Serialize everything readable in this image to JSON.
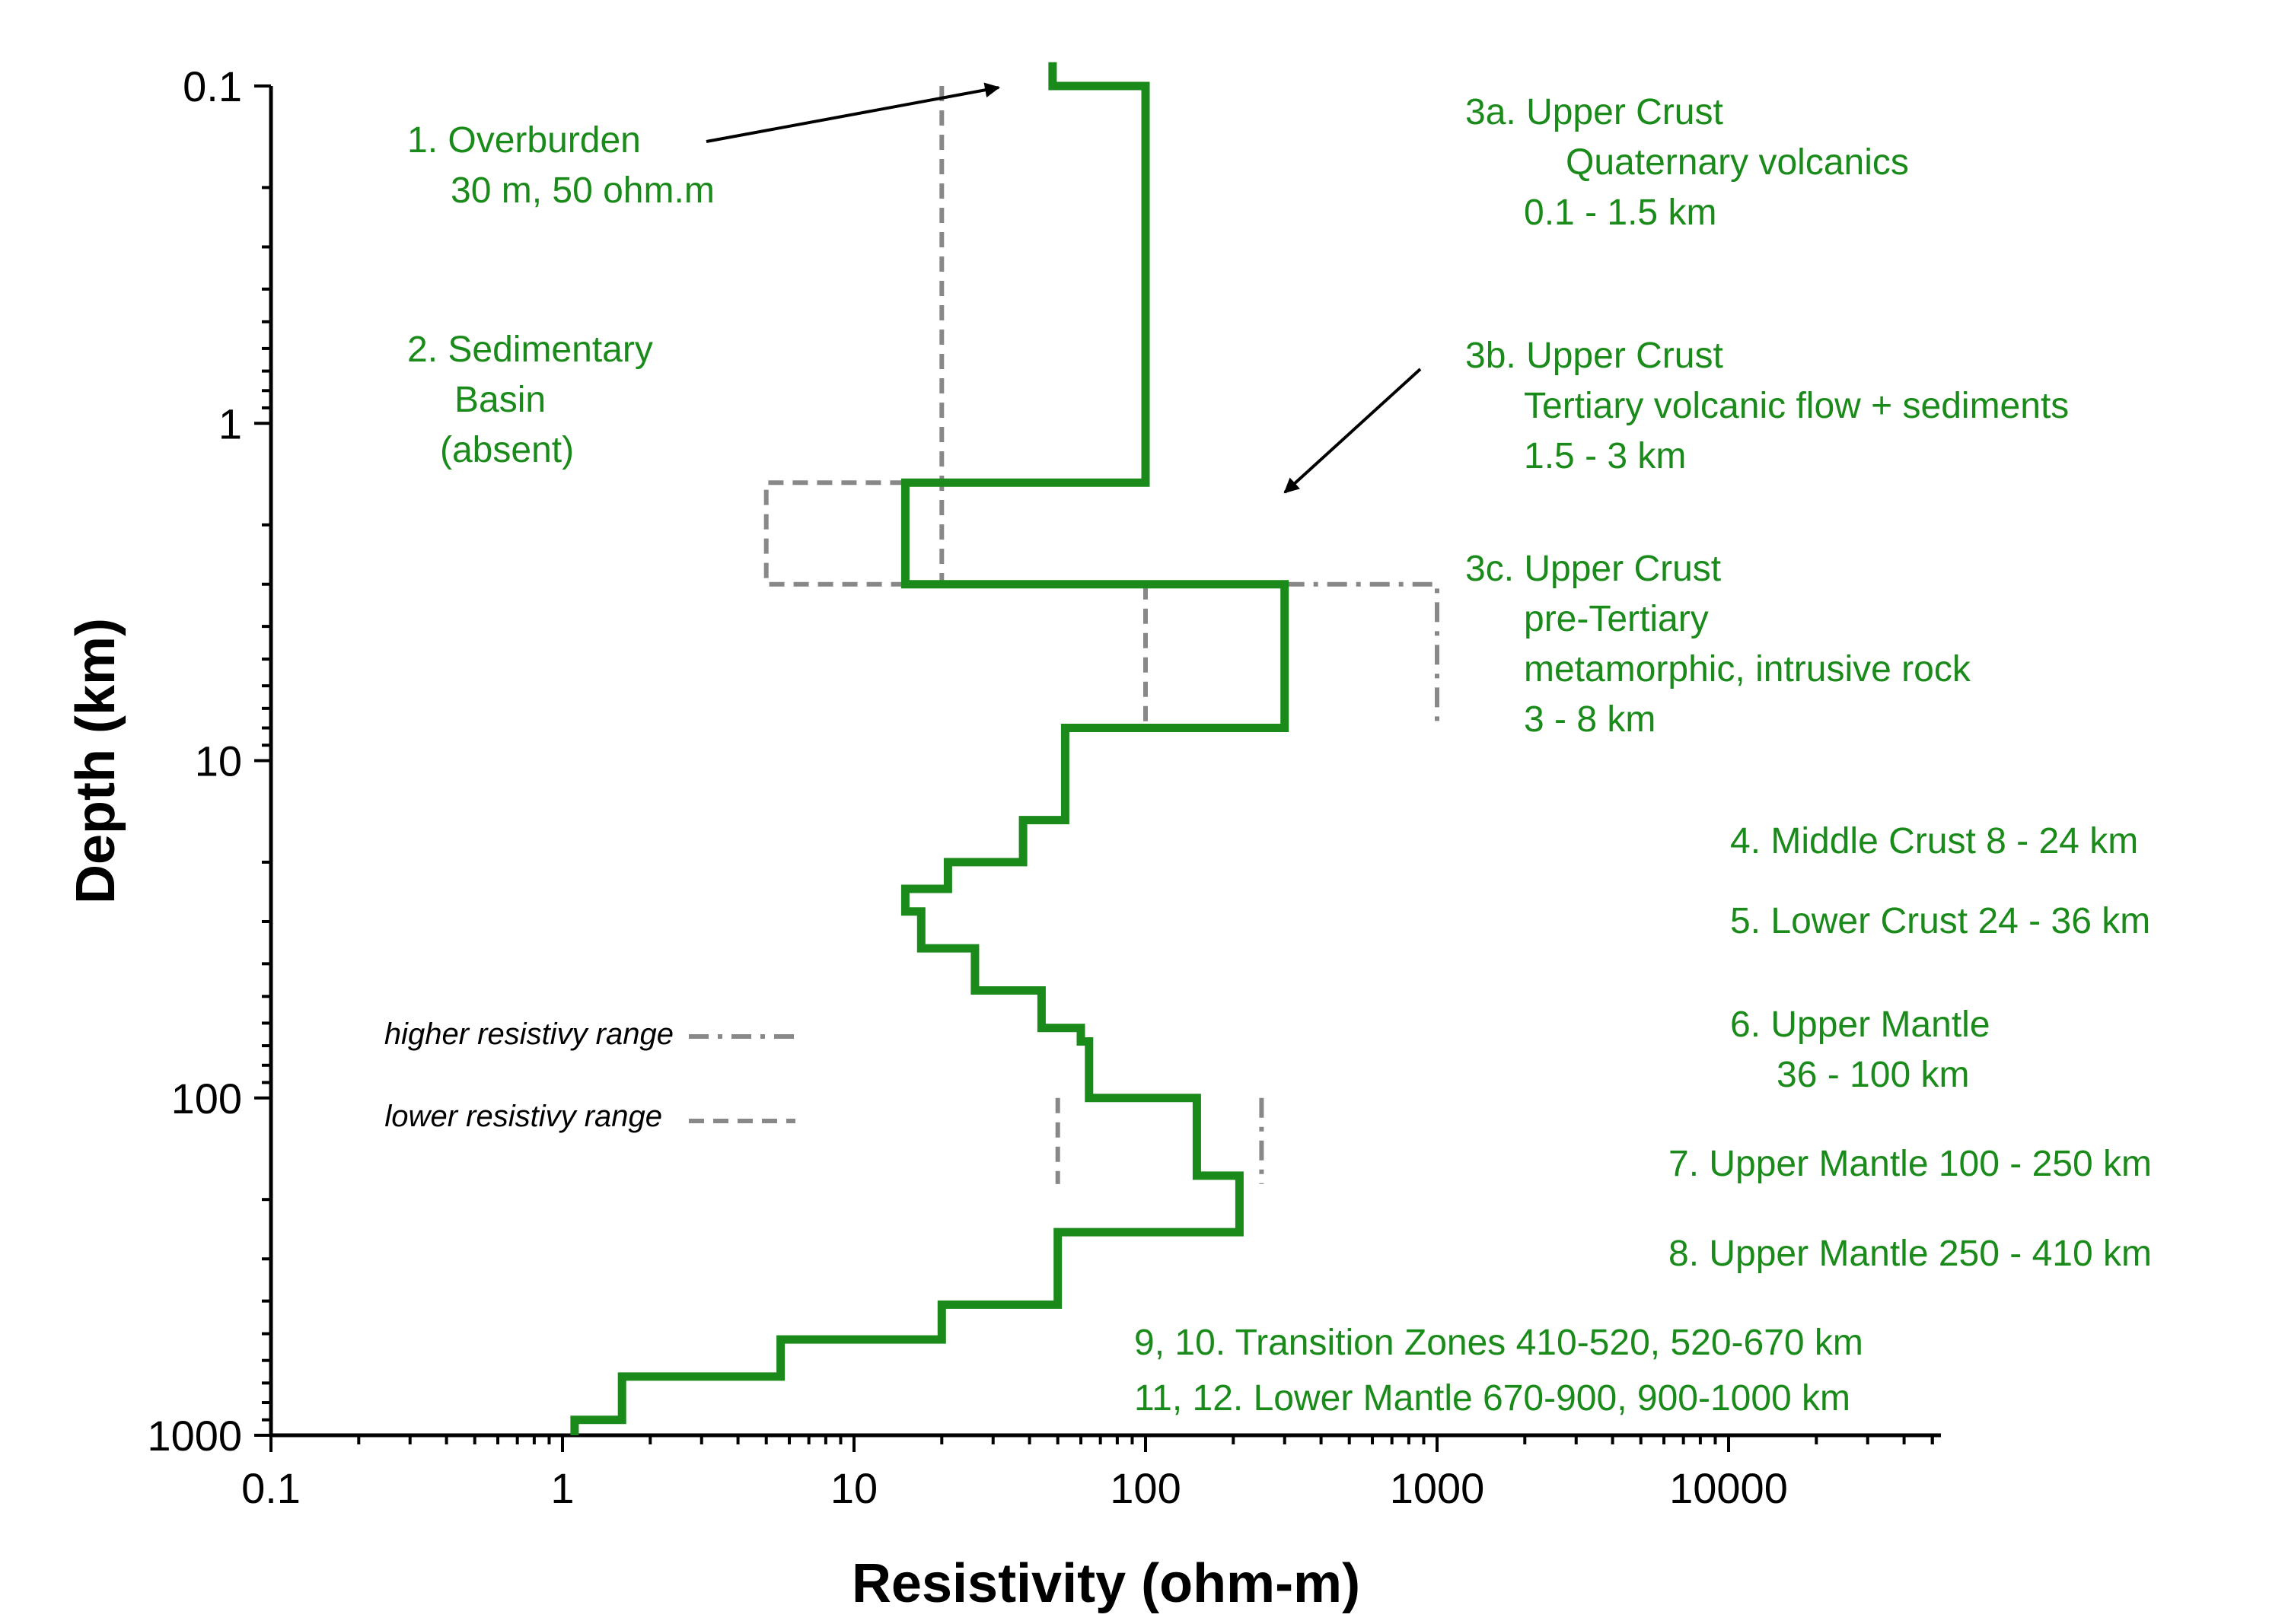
{
  "chart_data": {
    "type": "line",
    "xlabel": "Resistivity (ohm-m)",
    "ylabel": "Depth (km)",
    "x_scale": "log",
    "y_scale": "log",
    "y_inverted": true,
    "xlim": [
      0.1,
      50000
    ],
    "ylim": [
      0.1,
      1000
    ],
    "x_tick_labels": [
      "0.1",
      "1",
      "10",
      "100",
      "1000",
      "10000"
    ],
    "y_tick_labels": [
      "0.1",
      "1",
      "10",
      "100",
      "1000"
    ],
    "grid": false,
    "colors": {
      "profile": "#1a8a1a",
      "ranges": "#888888",
      "annotations": "#1a8a1a",
      "arrows": "#000000"
    },
    "series": [
      {
        "points": [
          [
            48,
            0.085
          ],
          [
            48,
            0.1
          ],
          [
            100,
            0.1
          ],
          [
            100,
            1.5
          ],
          [
            15,
            1.5
          ],
          [
            15,
            3
          ],
          [
            300,
            3
          ],
          [
            300,
            8
          ],
          [
            53,
            8
          ],
          [
            53,
            15
          ],
          [
            38,
            15
          ],
          [
            38,
            20
          ],
          [
            21,
            20
          ],
          [
            21,
            24
          ],
          [
            15,
            24
          ],
          [
            15,
            28
          ],
          [
            17,
            28
          ],
          [
            17,
            36
          ],
          [
            26,
            36
          ],
          [
            26,
            48
          ],
          [
            44,
            48
          ],
          [
            44,
            62
          ],
          [
            60,
            62
          ],
          [
            60,
            68
          ],
          [
            64,
            68
          ],
          [
            64,
            100
          ],
          [
            150,
            100
          ],
          [
            150,
            170
          ],
          [
            210,
            170
          ],
          [
            210,
            250
          ],
          [
            50,
            250
          ],
          [
            50,
            410
          ],
          [
            20,
            410
          ],
          [
            20,
            520
          ],
          [
            5.6,
            520
          ],
          [
            5.6,
            670
          ],
          [
            1.6,
            670
          ],
          [
            1.6,
            900
          ],
          [
            1.1,
            900
          ],
          [
            1.1,
            1000
          ]
        ]
      }
    ],
    "ranges": [
      {
        "kind": "lower",
        "points": [
          [
            20,
            0.1
          ],
          [
            20,
            3
          ]
        ]
      },
      {
        "kind": "lower",
        "points": [
          [
            15,
            1.5
          ],
          [
            5,
            1.5
          ],
          [
            5,
            3
          ],
          [
            15,
            3
          ]
        ]
      },
      {
        "kind": "lower",
        "points": [
          [
            100,
            3
          ],
          [
            100,
            8
          ]
        ]
      },
      {
        "kind": "lower",
        "points": [
          [
            50,
            100
          ],
          [
            50,
            180
          ]
        ]
      },
      {
        "kind": "higher",
        "points": [
          [
            300,
            3
          ],
          [
            1000,
            3
          ],
          [
            1000,
            8
          ]
        ]
      },
      {
        "kind": "higher",
        "points": [
          [
            250,
            100
          ],
          [
            250,
            180
          ]
        ]
      }
    ],
    "legend": [
      {
        "label": "higher resistivy range",
        "style": "dash-dot"
      },
      {
        "label": "lower resistivy range",
        "style": "dash"
      }
    ],
    "annotations": [
      {
        "lines": [
          "1. Overburden",
          "30 m, 50 ohm.m"
        ]
      },
      {
        "lines": [
          "2. Sedimentary",
          "Basin",
          "(absent)"
        ]
      },
      {
        "lines": [
          "3a. Upper Crust",
          "Quaternary volcanics",
          "0.1 - 1.5 km"
        ]
      },
      {
        "lines": [
          "3b. Upper Crust",
          "Tertiary volcanic flow + sediments",
          "1.5 - 3 km"
        ]
      },
      {
        "lines": [
          "3c. Upper Crust",
          "pre-Tertiary",
          "metamorphic, intrusive rock",
          "3 - 8 km"
        ]
      },
      {
        "lines": [
          "4. Middle Crust 8 - 24 km"
        ]
      },
      {
        "lines": [
          "5. Lower Crust 24 - 36 km"
        ]
      },
      {
        "lines": [
          "6. Upper Mantle",
          "36 - 100 km"
        ]
      },
      {
        "lines": [
          "7. Upper Mantle 100 - 250 km"
        ]
      },
      {
        "lines": [
          "8. Upper Mantle  250 - 410 km"
        ]
      },
      {
        "lines": [
          "9, 10. Transition Zones 410-520, 520-670 km"
        ]
      },
      {
        "lines": [
          "11, 12. Lower Mantle 670-900, 900-1000 km"
        ]
      }
    ]
  }
}
